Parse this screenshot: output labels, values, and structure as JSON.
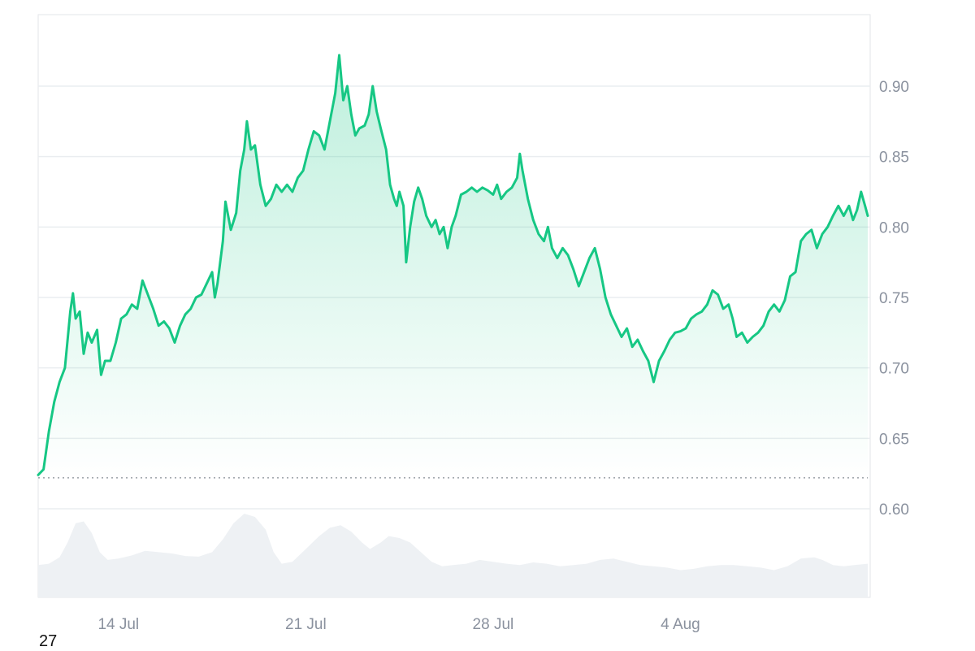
{
  "chart_data": {
    "type": "area",
    "x_ticks": [
      "14 Jul",
      "21 Jul",
      "28 Jul",
      "4 Aug"
    ],
    "x_tick_positions": [
      13.5,
      20.5,
      27.5,
      34.5
    ],
    "x_range": [
      10.5,
      41.5
    ],
    "y_ticks": [
      "0.60",
      "0.65",
      "0.70",
      "0.75",
      "0.80",
      "0.85",
      "0.90"
    ],
    "y_range": [
      0.54,
      0.95
    ],
    "baseline": 0.622,
    "grid": true,
    "series": [
      {
        "values": [
          [
            10.5,
            0.624
          ],
          [
            10.7,
            0.628
          ],
          [
            10.9,
            0.655
          ],
          [
            11.1,
            0.676
          ],
          [
            11.3,
            0.69
          ],
          [
            11.5,
            0.7
          ],
          [
            11.7,
            0.74
          ],
          [
            11.8,
            0.753
          ],
          [
            11.9,
            0.735
          ],
          [
            12.05,
            0.74
          ],
          [
            12.2,
            0.71
          ],
          [
            12.35,
            0.725
          ],
          [
            12.5,
            0.718
          ],
          [
            12.7,
            0.727
          ],
          [
            12.85,
            0.695
          ],
          [
            13.0,
            0.705
          ],
          [
            13.2,
            0.705
          ],
          [
            13.4,
            0.718
          ],
          [
            13.6,
            0.735
          ],
          [
            13.8,
            0.738
          ],
          [
            14.0,
            0.745
          ],
          [
            14.2,
            0.742
          ],
          [
            14.4,
            0.762
          ],
          [
            14.6,
            0.752
          ],
          [
            14.8,
            0.742
          ],
          [
            15.0,
            0.73
          ],
          [
            15.2,
            0.733
          ],
          [
            15.4,
            0.728
          ],
          [
            15.6,
            0.718
          ],
          [
            15.8,
            0.73
          ],
          [
            16.0,
            0.738
          ],
          [
            16.2,
            0.742
          ],
          [
            16.4,
            0.75
          ],
          [
            16.6,
            0.752
          ],
          [
            16.8,
            0.76
          ],
          [
            17.0,
            0.768
          ],
          [
            17.1,
            0.75
          ],
          [
            17.2,
            0.76
          ],
          [
            17.4,
            0.79
          ],
          [
            17.5,
            0.818
          ],
          [
            17.7,
            0.798
          ],
          [
            17.9,
            0.81
          ],
          [
            18.05,
            0.84
          ],
          [
            18.2,
            0.855
          ],
          [
            18.3,
            0.875
          ],
          [
            18.45,
            0.855
          ],
          [
            18.6,
            0.858
          ],
          [
            18.8,
            0.83
          ],
          [
            19.0,
            0.815
          ],
          [
            19.2,
            0.82
          ],
          [
            19.4,
            0.83
          ],
          [
            19.6,
            0.825
          ],
          [
            19.8,
            0.83
          ],
          [
            20.0,
            0.825
          ],
          [
            20.2,
            0.835
          ],
          [
            20.4,
            0.84
          ],
          [
            20.6,
            0.855
          ],
          [
            20.8,
            0.868
          ],
          [
            21.0,
            0.865
          ],
          [
            21.2,
            0.855
          ],
          [
            21.4,
            0.875
          ],
          [
            21.6,
            0.895
          ],
          [
            21.75,
            0.922
          ],
          [
            21.9,
            0.89
          ],
          [
            22.05,
            0.9
          ],
          [
            22.2,
            0.88
          ],
          [
            22.35,
            0.865
          ],
          [
            22.5,
            0.87
          ],
          [
            22.7,
            0.872
          ],
          [
            22.85,
            0.88
          ],
          [
            23.0,
            0.9
          ],
          [
            23.15,
            0.882
          ],
          [
            23.3,
            0.87
          ],
          [
            23.5,
            0.855
          ],
          [
            23.65,
            0.83
          ],
          [
            23.8,
            0.82
          ],
          [
            23.9,
            0.815
          ],
          [
            24.0,
            0.825
          ],
          [
            24.15,
            0.815
          ],
          [
            24.25,
            0.775
          ],
          [
            24.4,
            0.8
          ],
          [
            24.55,
            0.818
          ],
          [
            24.7,
            0.828
          ],
          [
            24.85,
            0.82
          ],
          [
            25.0,
            0.808
          ],
          [
            25.2,
            0.8
          ],
          [
            25.35,
            0.805
          ],
          [
            25.5,
            0.795
          ],
          [
            25.65,
            0.8
          ],
          [
            25.8,
            0.785
          ],
          [
            25.95,
            0.8
          ],
          [
            26.1,
            0.808
          ],
          [
            26.3,
            0.823
          ],
          [
            26.5,
            0.825
          ],
          [
            26.7,
            0.828
          ],
          [
            26.9,
            0.825
          ],
          [
            27.1,
            0.828
          ],
          [
            27.3,
            0.826
          ],
          [
            27.5,
            0.823
          ],
          [
            27.65,
            0.83
          ],
          [
            27.8,
            0.82
          ],
          [
            28.0,
            0.825
          ],
          [
            28.2,
            0.828
          ],
          [
            28.4,
            0.835
          ],
          [
            28.5,
            0.852
          ],
          [
            28.6,
            0.84
          ],
          [
            28.8,
            0.82
          ],
          [
            29.0,
            0.805
          ],
          [
            29.2,
            0.795
          ],
          [
            29.4,
            0.79
          ],
          [
            29.55,
            0.8
          ],
          [
            29.7,
            0.785
          ],
          [
            29.9,
            0.778
          ],
          [
            30.1,
            0.785
          ],
          [
            30.3,
            0.78
          ],
          [
            30.5,
            0.77
          ],
          [
            30.7,
            0.758
          ],
          [
            30.9,
            0.768
          ],
          [
            31.1,
            0.778
          ],
          [
            31.3,
            0.785
          ],
          [
            31.5,
            0.77
          ],
          [
            31.7,
            0.75
          ],
          [
            31.9,
            0.738
          ],
          [
            32.1,
            0.73
          ],
          [
            32.3,
            0.722
          ],
          [
            32.5,
            0.728
          ],
          [
            32.7,
            0.715
          ],
          [
            32.9,
            0.72
          ],
          [
            33.1,
            0.712
          ],
          [
            33.3,
            0.705
          ],
          [
            33.5,
            0.69
          ],
          [
            33.7,
            0.705
          ],
          [
            33.9,
            0.712
          ],
          [
            34.1,
            0.72
          ],
          [
            34.3,
            0.725
          ],
          [
            34.5,
            0.726
          ],
          [
            34.7,
            0.728
          ],
          [
            34.9,
            0.735
          ],
          [
            35.1,
            0.738
          ],
          [
            35.3,
            0.74
          ],
          [
            35.5,
            0.745
          ],
          [
            35.7,
            0.755
          ],
          [
            35.9,
            0.752
          ],
          [
            36.1,
            0.742
          ],
          [
            36.3,
            0.745
          ],
          [
            36.45,
            0.735
          ],
          [
            36.6,
            0.722
          ],
          [
            36.8,
            0.725
          ],
          [
            37.0,
            0.718
          ],
          [
            37.2,
            0.722
          ],
          [
            37.4,
            0.725
          ],
          [
            37.6,
            0.73
          ],
          [
            37.8,
            0.74
          ],
          [
            38.0,
            0.745
          ],
          [
            38.2,
            0.74
          ],
          [
            38.4,
            0.748
          ],
          [
            38.6,
            0.765
          ],
          [
            38.8,
            0.768
          ],
          [
            39.0,
            0.79
          ],
          [
            39.2,
            0.795
          ],
          [
            39.4,
            0.798
          ],
          [
            39.6,
            0.785
          ],
          [
            39.8,
            0.795
          ],
          [
            40.0,
            0.8
          ],
          [
            40.2,
            0.808
          ],
          [
            40.4,
            0.815
          ],
          [
            40.6,
            0.808
          ],
          [
            40.8,
            0.815
          ],
          [
            40.95,
            0.805
          ],
          [
            41.1,
            0.812
          ],
          [
            41.25,
            0.825
          ],
          [
            41.4,
            0.815
          ],
          [
            41.5,
            0.808
          ]
        ]
      }
    ],
    "volume": [
      [
        10.5,
        0.2
      ],
      [
        10.9,
        0.22
      ],
      [
        11.3,
        0.32
      ],
      [
        11.6,
        0.55
      ],
      [
        11.9,
        0.85
      ],
      [
        12.2,
        0.88
      ],
      [
        12.5,
        0.7
      ],
      [
        12.8,
        0.4
      ],
      [
        13.1,
        0.28
      ],
      [
        13.5,
        0.3
      ],
      [
        14.0,
        0.35
      ],
      [
        14.5,
        0.42
      ],
      [
        15.0,
        0.4
      ],
      [
        15.5,
        0.38
      ],
      [
        16.0,
        0.34
      ],
      [
        16.5,
        0.33
      ],
      [
        17.0,
        0.4
      ],
      [
        17.4,
        0.6
      ],
      [
        17.8,
        0.85
      ],
      [
        18.2,
        1.0
      ],
      [
        18.6,
        0.95
      ],
      [
        19.0,
        0.75
      ],
      [
        19.3,
        0.4
      ],
      [
        19.6,
        0.22
      ],
      [
        20.0,
        0.25
      ],
      [
        20.5,
        0.45
      ],
      [
        21.0,
        0.65
      ],
      [
        21.4,
        0.78
      ],
      [
        21.8,
        0.82
      ],
      [
        22.2,
        0.72
      ],
      [
        22.6,
        0.55
      ],
      [
        22.9,
        0.45
      ],
      [
        23.3,
        0.55
      ],
      [
        23.6,
        0.65
      ],
      [
        24.0,
        0.62
      ],
      [
        24.4,
        0.55
      ],
      [
        24.8,
        0.4
      ],
      [
        25.2,
        0.25
      ],
      [
        25.6,
        0.18
      ],
      [
        26.0,
        0.2
      ],
      [
        26.5,
        0.22
      ],
      [
        27.0,
        0.28
      ],
      [
        27.5,
        0.25
      ],
      [
        28.0,
        0.22
      ],
      [
        28.5,
        0.2
      ],
      [
        29.0,
        0.24
      ],
      [
        29.5,
        0.22
      ],
      [
        30.0,
        0.18
      ],
      [
        30.5,
        0.2
      ],
      [
        31.0,
        0.22
      ],
      [
        31.5,
        0.28
      ],
      [
        32.0,
        0.3
      ],
      [
        32.5,
        0.25
      ],
      [
        33.0,
        0.2
      ],
      [
        33.5,
        0.18
      ],
      [
        34.0,
        0.16
      ],
      [
        34.5,
        0.12
      ],
      [
        35.0,
        0.14
      ],
      [
        35.5,
        0.18
      ],
      [
        36.0,
        0.2
      ],
      [
        36.5,
        0.2
      ],
      [
        37.0,
        0.18
      ],
      [
        37.5,
        0.16
      ],
      [
        38.0,
        0.12
      ],
      [
        38.5,
        0.18
      ],
      [
        39.0,
        0.3
      ],
      [
        39.5,
        0.32
      ],
      [
        39.8,
        0.28
      ],
      [
        40.2,
        0.2
      ],
      [
        40.6,
        0.18
      ],
      [
        41.0,
        0.2
      ],
      [
        41.5,
        0.22
      ]
    ]
  },
  "footnote": "27",
  "colors": {
    "line": "#16c784",
    "fill_top": "#16c784",
    "grid": "#eaedf0",
    "border": "#e3e6ea",
    "baseline": "#9aa0a6",
    "volume": "#eef1f4",
    "tick_text": "#8a919e"
  }
}
